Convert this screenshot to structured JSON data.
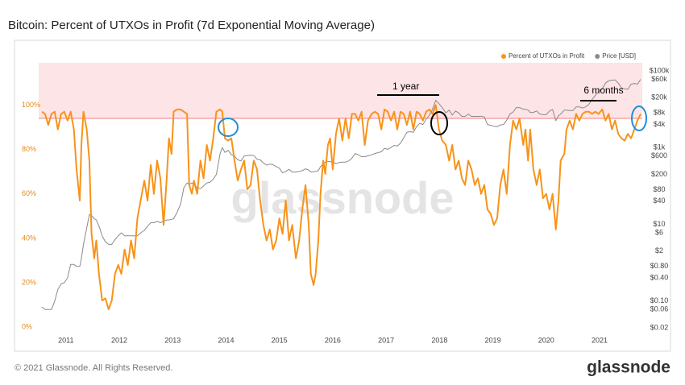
{
  "chart_data": {
    "type": "line",
    "title": "Bitcoin: Percent of UTXOs in Profit (7d Exponential Moving Average)",
    "footer": "© 2021 Glassnode. All Rights Reserved.",
    "brand": "glassnode",
    "watermark": "glassnode",
    "annotations": [
      "1 year",
      "6 months"
    ],
    "threshold": 94,
    "band_color": "#fde4e6",
    "threshold_color": "#f08080",
    "x": [
      2010.55,
      2010.61,
      2010.67,
      2010.73,
      2010.79,
      2010.85,
      2010.91,
      2010.97,
      2011.03,
      2011.09,
      2011.15,
      2011.2,
      2011.23,
      2011.26,
      2011.29,
      2011.33,
      2011.39,
      2011.44,
      2011.48,
      2011.53,
      2011.57,
      2011.62,
      2011.68,
      2011.74,
      2011.8,
      2011.86,
      2011.92,
      2011.98,
      2012.04,
      2012.1,
      2012.16,
      2012.22,
      2012.28,
      2012.34,
      2012.4,
      2012.47,
      2012.53,
      2012.59,
      2012.65,
      2012.71,
      2012.77,
      2012.83,
      2012.89,
      2012.93,
      2012.98,
      2013.02,
      2013.08,
      2013.15,
      2013.21,
      2013.27,
      2013.31,
      2013.36,
      2013.4,
      2013.46,
      2013.52,
      2013.58,
      2013.64,
      2013.7,
      2013.76,
      2013.82,
      2013.89,
      2013.93,
      2013.98,
      2014.04,
      2014.1,
      2014.16,
      2014.22,
      2014.28,
      2014.34,
      2014.4,
      2014.46,
      2014.52,
      2014.58,
      2014.64,
      2014.7,
      2014.76,
      2014.82,
      2014.88,
      2014.94,
      2015.0,
      2015.06,
      2015.12,
      2015.18,
      2015.24,
      2015.31,
      2015.37,
      2015.43,
      2015.49,
      2015.55,
      2015.59,
      2015.64,
      2015.68,
      2015.73,
      2015.77,
      2015.82,
      2015.86,
      2015.91,
      2015.95,
      2016.0,
      2016.06,
      2016.12,
      2016.18,
      2016.24,
      2016.3,
      2016.36,
      2016.42,
      2016.48,
      2016.54,
      2016.6,
      2016.66,
      2016.73,
      2016.79,
      2016.85,
      2016.91,
      2016.97,
      2017.03,
      2017.09,
      2017.15,
      2017.21,
      2017.27,
      2017.33,
      2017.39,
      2017.45,
      2017.51,
      2017.57,
      2017.63,
      2017.69,
      2017.75,
      2017.81,
      2017.87,
      2017.93,
      2017.99,
      2018.05,
      2018.12,
      2018.18,
      2018.24,
      2018.3,
      2018.36,
      2018.42,
      2018.48,
      2018.54,
      2018.6,
      2018.66,
      2018.72,
      2018.78,
      2018.84,
      2018.9,
      2018.96,
      2019.02,
      2019.08,
      2019.14,
      2019.2,
      2019.26,
      2019.32,
      2019.38,
      2019.44,
      2019.5,
      2019.57,
      2019.61,
      2019.66,
      2019.7,
      2019.76,
      2019.82,
      2019.88,
      2019.94,
      2020.0,
      2020.06,
      2020.12,
      2020.18,
      2020.23,
      2020.27,
      2020.34,
      2020.38,
      2020.44,
      2020.5,
      2020.56,
      2020.62,
      2020.68,
      2020.74,
      2020.8,
      2020.86,
      2020.92,
      2020.98,
      2021.05,
      2021.11,
      2021.17,
      2021.23,
      2021.29,
      2021.35,
      2021.41,
      2021.47,
      2021.53,
      2021.59,
      2021.65,
      2021.71,
      2021.77
    ],
    "series": [
      {
        "name": "Percent of UTXOs in Profit",
        "color": "#f7931a",
        "values": [
          97,
          96,
          91,
          96,
          97,
          89,
          96,
          97,
          93,
          97,
          89,
          71,
          64,
          57,
          82,
          97,
          89,
          75,
          42,
          31,
          39,
          24,
          12,
          13,
          8,
          12,
          24,
          28,
          24,
          35,
          28,
          39,
          31,
          49,
          57,
          66,
          57,
          73,
          60,
          75,
          67,
          46,
          67,
          85,
          78,
          97,
          98,
          98,
          97,
          96,
          64,
          60,
          66,
          60,
          75,
          67,
          82,
          75,
          85,
          97,
          98,
          97,
          85,
          84,
          85,
          75,
          66,
          71,
          75,
          62,
          64,
          75,
          71,
          57,
          46,
          39,
          44,
          35,
          39,
          49,
          42,
          57,
          39,
          46,
          31,
          39,
          53,
          64,
          46,
          24,
          19,
          24,
          39,
          60,
          75,
          69,
          82,
          85,
          71,
          87,
          94,
          84,
          94,
          85,
          96,
          96,
          93,
          97,
          82,
          93,
          96,
          97,
          96,
          89,
          98,
          97,
          93,
          97,
          89,
          97,
          96,
          91,
          97,
          89,
          97,
          96,
          93,
          97,
          98,
          96,
          100,
          89,
          84,
          82,
          75,
          82,
          71,
          75,
          67,
          64,
          75,
          71,
          64,
          67,
          60,
          64,
          53,
          51,
          46,
          49,
          64,
          71,
          60,
          82,
          93,
          89,
          94,
          82,
          89,
          75,
          89,
          71,
          64,
          71,
          58,
          60,
          53,
          60,
          44,
          57,
          75,
          78,
          89,
          93,
          89,
          96,
          93,
          96,
          97,
          97,
          96,
          97,
          96,
          98,
          93,
          96,
          89,
          93,
          87,
          85,
          84,
          87,
          85,
          89,
          93,
          96
        ]
      },
      {
        "name": "Price [USD]",
        "color": "#8a8a8a",
        "axis": "y2",
        "values": [
          0.07,
          0.06,
          0.06,
          0.06,
          0.1,
          0.2,
          0.28,
          0.3,
          0.4,
          0.9,
          0.9,
          0.8,
          0.8,
          0.8,
          1.3,
          3,
          8,
          18,
          17,
          14,
          13,
          9,
          5,
          3.5,
          3,
          3,
          4,
          5,
          6,
          5,
          5,
          5,
          5,
          5,
          6,
          7,
          9,
          11,
          11,
          12,
          11,
          12,
          13,
          13,
          13.5,
          14,
          20,
          34,
          90,
          120,
          110,
          120,
          110,
          90,
          85,
          100,
          120,
          125,
          150,
          200,
          700,
          1000,
          750,
          850,
          650,
          600,
          480,
          450,
          600,
          620,
          630,
          620,
          500,
          480,
          400,
          350,
          370,
          360,
          320,
          290,
          220,
          240,
          270,
          230,
          230,
          240,
          250,
          280,
          260,
          230,
          235,
          240,
          250,
          320,
          380,
          420,
          440,
          430,
          430,
          380,
          410,
          420,
          420,
          450,
          530,
          700,
          650,
          580,
          580,
          610,
          650,
          700,
          740,
          780,
          960,
          900,
          1000,
          1150,
          1100,
          1300,
          1800,
          2500,
          2600,
          2500,
          3500,
          4300,
          4000,
          5500,
          7000,
          10000,
          17000,
          14000,
          11000,
          8000,
          9500,
          7000,
          9000,
          8000,
          6500,
          6500,
          7500,
          6500,
          6500,
          6500,
          6600,
          6300,
          4000,
          3800,
          3600,
          3500,
          3900,
          4000,
          5200,
          7500,
          8500,
          11000,
          11000,
          10000,
          10000,
          9500,
          8200,
          8300,
          9000,
          7500,
          7200,
          7200,
          9000,
          9800,
          5000,
          6700,
          7500,
          9500,
          9500,
          9200,
          9200,
          11500,
          11500,
          10700,
          11500,
          13500,
          18000,
          23000,
          29000,
          34000,
          48000,
          55000,
          57000,
          58000,
          48000,
          36000,
          34000,
          33000,
          45000,
          47000,
          45000,
          60000
        ]
      }
    ],
    "xlim": [
      2010.49,
      2021.8
    ],
    "xticks": [
      2011,
      2012,
      2013,
      2014,
      2015,
      2016,
      2017,
      2018,
      2019,
      2020,
      2021
    ],
    "ylim": [
      -5,
      119
    ],
    "yticks": [
      {
        "value": 0,
        "label": "0%"
      },
      {
        "value": 20,
        "label": "20%"
      },
      {
        "value": 40,
        "label": "40%"
      },
      {
        "value": 60,
        "label": "60%"
      },
      {
        "value": 80,
        "label": "80%"
      },
      {
        "value": 100,
        "label": "100%"
      }
    ],
    "y2lim": [
      0.0107,
      162000
    ],
    "y2_log": true,
    "y2ticks": [
      {
        "value": 100000,
        "label": "$100k"
      },
      {
        "value": 60000,
        "label": "$60k"
      },
      {
        "value": 20000,
        "label": "$20k"
      },
      {
        "value": 8000,
        "label": "$8k"
      },
      {
        "value": 4000,
        "label": "$4k"
      },
      {
        "value": 1000,
        "label": "$1k"
      },
      {
        "value": 600,
        "label": "$600"
      },
      {
        "value": 200,
        "label": "$200"
      },
      {
        "value": 80,
        "label": "$80"
      },
      {
        "value": 40,
        "label": "$40"
      },
      {
        "value": 10,
        "label": "$10"
      },
      {
        "value": 6,
        "label": "$6"
      },
      {
        "value": 2,
        "label": "$2"
      },
      {
        "value": 0.8,
        "label": "$0.80"
      },
      {
        "value": 0.4,
        "label": "$0.40"
      },
      {
        "value": 0.1,
        "label": "$0.10"
      },
      {
        "value": 0.06,
        "label": "$0.06"
      },
      {
        "value": 0.02,
        "label": "$0.02"
      }
    ],
    "grid": false,
    "legend": "top-right"
  }
}
